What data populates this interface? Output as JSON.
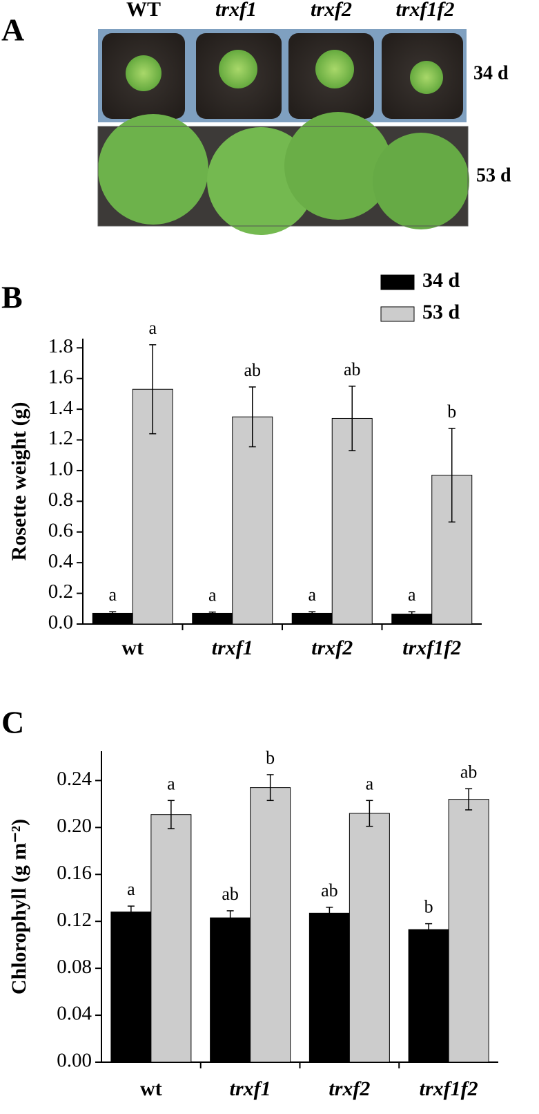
{
  "panel_a": {
    "label": "A",
    "genotypes": [
      "WT",
      "trxf1",
      "trxf2",
      "trxf1f2"
    ],
    "ages": [
      "34 d",
      "53 d"
    ]
  },
  "chart_data": [
    {
      "type": "bar",
      "panel_label": "B",
      "ylabel": "Rosette weight (g)",
      "categories": [
        "wt",
        "trxf1",
        "trxf2",
        "trxf1f2"
      ],
      "series": [
        {
          "name": "34 d",
          "color": "#000000",
          "values": [
            0.07,
            0.07,
            0.07,
            0.065
          ],
          "errors": [
            0.01,
            0.008,
            0.01,
            0.015
          ],
          "letters": [
            "a",
            "a",
            "a",
            "a"
          ]
        },
        {
          "name": "53 d",
          "color": "#cccccc",
          "values": [
            1.53,
            1.35,
            1.34,
            0.97
          ],
          "errors": [
            0.29,
            0.195,
            0.21,
            0.305
          ],
          "letters": [
            "a",
            "ab",
            "ab",
            "b"
          ]
        }
      ],
      "ylim": [
        0,
        1.86
      ],
      "yticks": [
        {
          "value": 0,
          "label": "0.0"
        },
        0.2,
        0.4,
        0.6,
        0.8,
        {
          "value": 1,
          "label": "1.0"
        },
        1.2,
        1.4,
        1.6,
        1.8
      ],
      "legend": "top-right"
    },
    {
      "type": "bar",
      "panel_label": "C",
      "ylabel": "Chlorophyll (g m⁻²)",
      "categories": [
        "wt",
        "trxf1",
        "trxf2",
        "trxf1f2"
      ],
      "series": [
        {
          "name": "34 d",
          "color": "#000000",
          "values": [
            0.128,
            0.123,
            0.127,
            0.113
          ],
          "errors": [
            0.005,
            0.006,
            0.005,
            0.005
          ],
          "letters": [
            "a",
            "ab",
            "ab",
            "b"
          ]
        },
        {
          "name": "53 d",
          "color": "#cccccc",
          "values": [
            0.211,
            0.234,
            0.212,
            0.224
          ],
          "errors": [
            0.012,
            0.011,
            0.011,
            0.009
          ],
          "letters": [
            "a",
            "b",
            "a",
            "ab"
          ]
        }
      ],
      "ylim": [
        0,
        0.265
      ],
      "yticks": [
        {
          "value": 0,
          "label": "0.00"
        },
        {
          "value": 0.04,
          "label": "0.04"
        },
        {
          "value": 0.08,
          "label": "0.08"
        },
        {
          "value": 0.12,
          "label": "0.12"
        },
        {
          "value": 0.16,
          "label": "0.16"
        },
        {
          "value": 0.2,
          "label": "0.20"
        },
        {
          "value": 0.24,
          "label": "0.24"
        }
      ]
    }
  ]
}
